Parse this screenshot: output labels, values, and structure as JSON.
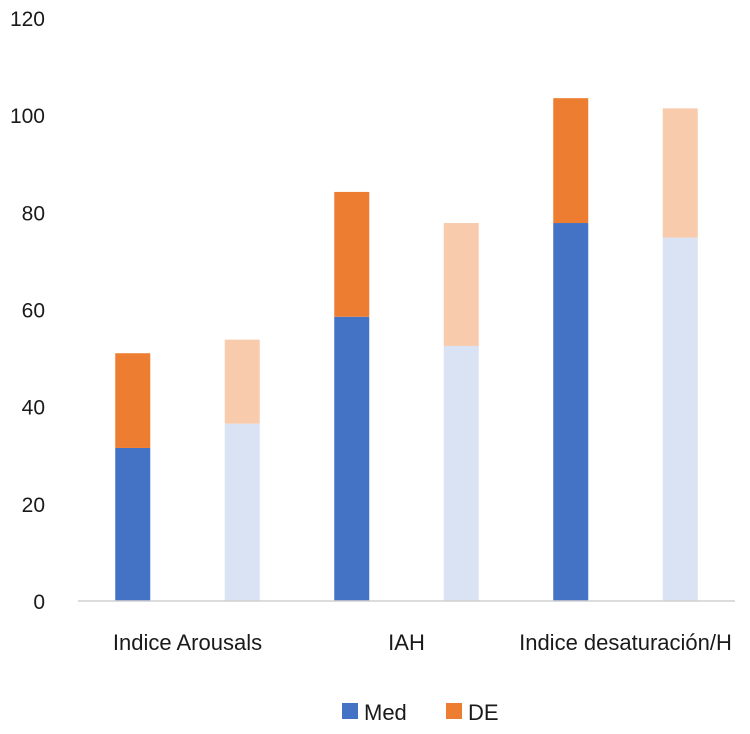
{
  "chart_data": {
    "type": "bar",
    "stacked": true,
    "title": "",
    "xlabel": "",
    "ylabel": "",
    "ylim": [
      0,
      120
    ],
    "yticks": [
      0,
      20,
      40,
      60,
      80,
      100,
      120
    ],
    "grid": false,
    "legend_position": "bottom",
    "categories": [
      "Indice Arousals",
      "IAH",
      "Indice desaturación/H"
    ],
    "series": [
      {
        "name": "Med",
        "color": "#4472C4",
        "faded_color": "#DAE3F3"
      },
      {
        "name": "DE",
        "color": "#ED7D31",
        "faded_color": "#F8CBAD"
      }
    ],
    "bars": [
      {
        "category": "Indice Arousals",
        "faded": false,
        "Med": 31.5,
        "DE": 19.5
      },
      {
        "category": "Indice Arousals",
        "faded": true,
        "Med": 36.5,
        "DE": 17.3
      },
      {
        "category": "IAH",
        "faded": false,
        "Med": 58.5,
        "DE": 25.7
      },
      {
        "category": "IAH",
        "faded": true,
        "Med": 52.5,
        "DE": 25.3
      },
      {
        "category": "Indice desaturación/H",
        "faded": false,
        "Med": 77.8,
        "DE": 25.7
      },
      {
        "category": "Indice desaturación/H",
        "faded": true,
        "Med": 74.8,
        "DE": 26.6
      }
    ]
  }
}
